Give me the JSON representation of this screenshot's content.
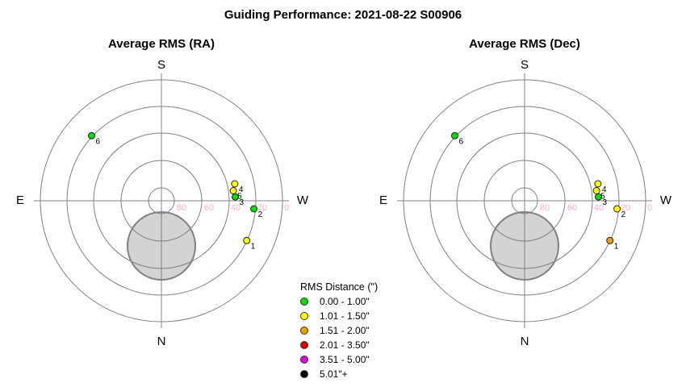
{
  "title": "Guiding Performance: 2021-08-22 S00906",
  "compass": {
    "north": "N",
    "south": "S",
    "east": "E",
    "west": "W"
  },
  "altitude_ticks": [
    "80",
    "60",
    "40",
    "20",
    "0"
  ],
  "colors": {
    "grid": "#808080",
    "altitude_label": "#f4b0c0",
    "pole_fill": "#d3d3d3",
    "pole_stroke": "#808080"
  },
  "legend": {
    "title": "RMS Distance (\")",
    "items": [
      {
        "label": "0.00 - 1.00\"",
        "color": "#00e000"
      },
      {
        "label": "1.01 - 1.50\"",
        "color": "#ffff00"
      },
      {
        "label": "1.51 - 2.00\"",
        "color": "#f0a000"
      },
      {
        "label": "2.01 - 3.50\"",
        "color": "#e00000"
      },
      {
        "label": "3.51 - 5.00\"",
        "color": "#e000e0"
      },
      {
        "label": "5.01\"+",
        "color": "#000000"
      }
    ]
  },
  "chart_data": [
    {
      "type": "scatter",
      "title": "Average RMS (RA)",
      "coordinate_system": "polar sky plot (azimuth/altitude)",
      "r_axis": {
        "label": "altitude",
        "ticks": [
          80,
          60,
          40,
          20,
          0
        ],
        "lim": [
          0,
          90
        ]
      },
      "points": [
        {
          "label": "1",
          "azimuth": 115,
          "altitude": 20,
          "color": "#ffff00"
        },
        {
          "label": "2",
          "azimuth": 95,
          "altitude": 21,
          "color": "#00e000"
        },
        {
          "label": "3",
          "azimuth": 87,
          "altitude": 35,
          "color": "#00e000"
        },
        {
          "label": "4",
          "azimuth": 77,
          "altitude": 34,
          "color": "#ffff00"
        },
        {
          "label": "5",
          "azimuth": 82,
          "altitude": 36,
          "color": "#ffff00"
        },
        {
          "label": "6",
          "azimuth": 313,
          "altitude": 19,
          "color": "#00e000"
        }
      ]
    },
    {
      "type": "scatter",
      "title": "Average RMS (Dec)",
      "coordinate_system": "polar sky plot (azimuth/altitude)",
      "r_axis": {
        "label": "altitude",
        "ticks": [
          80,
          60,
          40,
          20,
          0
        ],
        "lim": [
          0,
          90
        ]
      },
      "points": [
        {
          "label": "1",
          "azimuth": 115,
          "altitude": 20,
          "color": "#f0a000"
        },
        {
          "label": "2",
          "azimuth": 95,
          "altitude": 21,
          "color": "#ffff00"
        },
        {
          "label": "3",
          "azimuth": 87,
          "altitude": 35,
          "color": "#00e000"
        },
        {
          "label": "4",
          "azimuth": 77,
          "altitude": 34,
          "color": "#ffff00"
        },
        {
          "label": "5",
          "azimuth": 82,
          "altitude": 36,
          "color": "#ffff00"
        },
        {
          "label": "6",
          "azimuth": 313,
          "altitude": 19,
          "color": "#00e000"
        }
      ]
    }
  ]
}
